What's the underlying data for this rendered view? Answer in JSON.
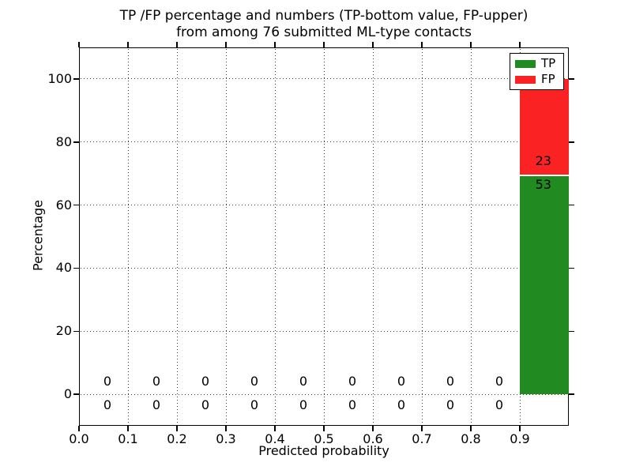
{
  "chart_data": {
    "type": "bar",
    "stacked": true,
    "title": "TP /FP percentage and numbers (TP-bottom value, FP-upper)\nfrom among 76 submitted ML-type contacts",
    "title_line1": "TP /FP percentage and numbers (TP-bottom value, FP-upper)",
    "title_line2": "from among 76 submitted ML-type contacts",
    "xlabel": "Predicted probability",
    "ylabel": "Percentage",
    "xlim": [
      0.0,
      1.0
    ],
    "ylim": [
      -10,
      110
    ],
    "xtick_values": [
      0.0,
      0.1,
      0.2,
      0.3,
      0.4,
      0.5,
      0.6,
      0.7,
      0.8,
      0.9
    ],
    "xtick_labels": [
      "0.0",
      "0.1",
      "0.2",
      "0.3",
      "0.4",
      "0.5",
      "0.6",
      "0.7",
      "0.8",
      "0.9"
    ],
    "ytick_values": [
      0,
      20,
      40,
      60,
      80,
      100
    ],
    "ytick_labels": [
      "0",
      "20",
      "40",
      "60",
      "80",
      "100"
    ],
    "grid_style": "dotted",
    "total_contacts": 76,
    "bin_width": 0.1,
    "bins": [
      {
        "x0": 0.0,
        "tp": 0,
        "fp": 0
      },
      {
        "x0": 0.1,
        "tp": 0,
        "fp": 0
      },
      {
        "x0": 0.2,
        "tp": 0,
        "fp": 0
      },
      {
        "x0": 0.3,
        "tp": 0,
        "fp": 0
      },
      {
        "x0": 0.4,
        "tp": 0,
        "fp": 0
      },
      {
        "x0": 0.5,
        "tp": 0,
        "fp": 0
      },
      {
        "x0": 0.6,
        "tp": 0,
        "fp": 0
      },
      {
        "x0": 0.7,
        "tp": 0,
        "fp": 0
      },
      {
        "x0": 0.8,
        "tp": 0,
        "fp": 0
      },
      {
        "x0": 0.9,
        "tp": 53,
        "fp": 23
      }
    ],
    "series": [
      {
        "name": "TP",
        "color": "#218b21"
      },
      {
        "name": "FP",
        "color": "#fa2222"
      }
    ],
    "legend": {
      "position": "upper-right",
      "entries": [
        {
          "label": "TP",
          "color": "#218b21"
        },
        {
          "label": "FP",
          "color": "#fa2222"
        }
      ]
    },
    "colors": {
      "separator": "#ffffff",
      "spine": "#000000",
      "text": "#000000"
    }
  }
}
